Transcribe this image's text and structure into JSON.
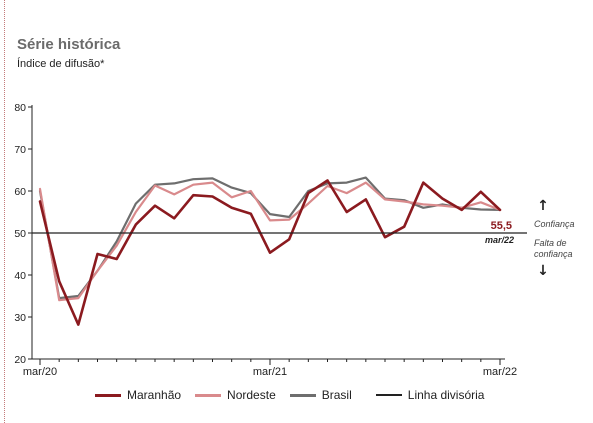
{
  "chart_data": {
    "type": "line",
    "title": "Série histórica",
    "subtitle": "Índice de difusão*",
    "ylim": [
      20,
      80
    ],
    "yticks": [
      "20",
      "30",
      "40",
      "50",
      "60",
      "70",
      "80"
    ],
    "xticks": [
      "mar/20",
      "mar/21",
      "mar/22"
    ],
    "threshold": 50,
    "grid": false,
    "legend_position": "bottom",
    "series": [
      {
        "name": "Maranhão",
        "color": "#8b1a1f",
        "values": [
          57.5,
          38.5,
          28.2,
          45.0,
          43.8,
          52.0,
          56.5,
          53.5,
          59.0,
          58.7,
          56.0,
          54.6,
          45.3,
          48.5,
          59.5,
          62.5,
          55.0,
          58.0,
          49.0,
          51.5,
          62.0,
          58.2,
          55.5,
          59.8,
          55.5
        ]
      },
      {
        "name": "Nordeste",
        "color": "#d98a8c",
        "values": [
          60.5,
          34.0,
          34.5,
          41.0,
          47.0,
          55.0,
          61.3,
          59.2,
          61.5,
          62.0,
          58.5,
          60.0,
          53.0,
          53.2,
          57.0,
          61.2,
          59.5,
          62.0,
          58.0,
          57.5,
          56.8,
          56.5,
          56.0,
          57.3,
          55.5
        ]
      },
      {
        "name": "Brasil",
        "color": "#6e6e6e",
        "values": [
          60.0,
          34.5,
          35.0,
          41.0,
          48.0,
          57.0,
          61.5,
          61.8,
          62.8,
          63.0,
          60.8,
          59.5,
          54.5,
          53.8,
          60.0,
          61.8,
          62.0,
          63.2,
          58.2,
          57.8,
          56.0,
          56.8,
          56.0,
          55.6,
          55.5
        ]
      }
    ],
    "annotations": {
      "last_value": "55,5",
      "last_period": "mar/22",
      "above_label": "Confiança",
      "below_label_line1": "Falta de",
      "below_label_line2": "confiança"
    },
    "legend_threshold_label": "Linha divisória"
  }
}
